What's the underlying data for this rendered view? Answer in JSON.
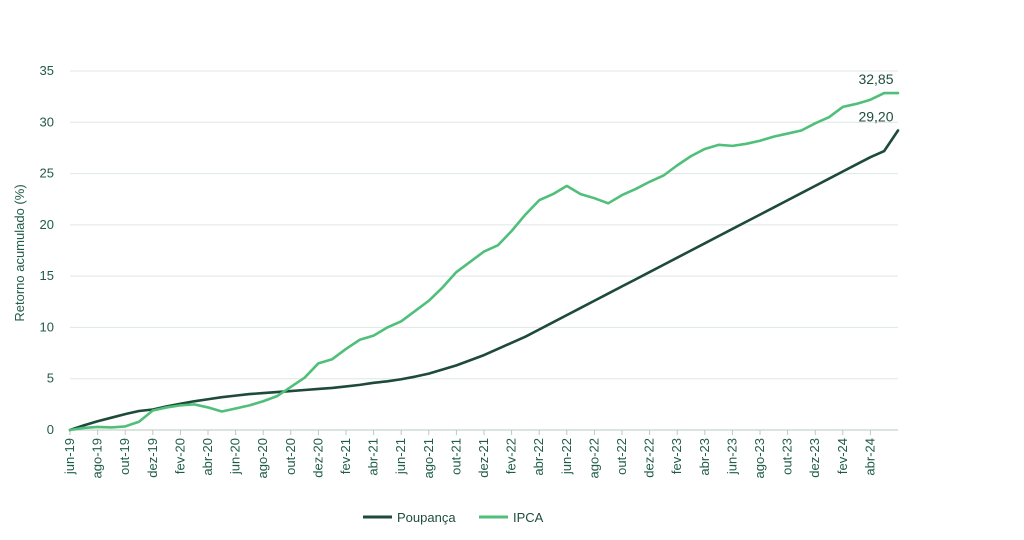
{
  "chart_data": {
    "type": "line",
    "ylabel": "Retorno acumulado (%)",
    "xlabel": "",
    "ylim": [
      0,
      35
    ],
    "yticks": [
      0,
      5,
      10,
      15,
      20,
      25,
      30,
      35
    ],
    "grid": "horizontal",
    "legend_position": "bottom-center",
    "x": [
      "jun-19",
      "jul-19",
      "ago-19",
      "set-19",
      "out-19",
      "nov-19",
      "dez-19",
      "jan-20",
      "fev-20",
      "mar-20",
      "abr-20",
      "mai-20",
      "jun-20",
      "jul-20",
      "ago-20",
      "set-20",
      "out-20",
      "nov-20",
      "dez-20",
      "jan-21",
      "fev-21",
      "mar-21",
      "abr-21",
      "mai-21",
      "jun-21",
      "jul-21",
      "ago-21",
      "set-21",
      "out-21",
      "nov-21",
      "dez-21",
      "jan-22",
      "fev-22",
      "mar-22",
      "abr-22",
      "mai-22",
      "jun-22",
      "jul-22",
      "ago-22",
      "set-22",
      "out-22",
      "nov-22",
      "dez-22",
      "jan-23",
      "fev-23",
      "mar-23",
      "abr-23",
      "mai-23",
      "jun-23",
      "jul-23",
      "ago-23",
      "set-23",
      "out-23",
      "nov-23",
      "dez-23",
      "jan-24",
      "fev-24",
      "mar-24",
      "abr-24",
      "mai-24",
      "jun-24"
    ],
    "xtick_labels": [
      "jun-19",
      "ago-19",
      "out-19",
      "dez-19",
      "fev-20",
      "abr-20",
      "jun-20",
      "ago-20",
      "out-20",
      "dez-20",
      "fev-21",
      "abr-21",
      "jun-21",
      "ago-21",
      "out-21",
      "dez-21",
      "fev-22",
      "abr-22",
      "jun-22",
      "ago-22",
      "out-22",
      "dez-22",
      "fev-23",
      "abr-23",
      "jun-23",
      "ago-23",
      "out-23",
      "dez-23",
      "fev-24",
      "abr-24"
    ],
    "series": [
      {
        "name": "Poupança",
        "color": "#1d4a39",
        "values": [
          0,
          0.45,
          0.85,
          1.2,
          1.55,
          1.85,
          2.0,
          2.3,
          2.55,
          2.8,
          3.0,
          3.2,
          3.35,
          3.5,
          3.6,
          3.7,
          3.8,
          3.9,
          4.0,
          4.1,
          4.25,
          4.4,
          4.6,
          4.75,
          4.95,
          5.2,
          5.5,
          5.9,
          6.3,
          6.8,
          7.3,
          7.9,
          8.5,
          9.1,
          9.8,
          10.5,
          11.2,
          11.9,
          12.6,
          13.3,
          14.0,
          14.7,
          15.4,
          16.1,
          16.8,
          17.5,
          18.2,
          18.9,
          19.6,
          20.3,
          21.0,
          21.7,
          22.4,
          23.1,
          23.8,
          24.5,
          25.2,
          25.9,
          26.6,
          27.2,
          29.2
        ],
        "end_label": "29,20"
      },
      {
        "name": "IPCA",
        "color": "#4fbf7a",
        "values": [
          0,
          0.2,
          0.3,
          0.25,
          0.35,
          0.8,
          1.9,
          2.2,
          2.4,
          2.5,
          2.2,
          1.8,
          2.1,
          2.4,
          2.8,
          3.3,
          4.2,
          5.1,
          6.5,
          6.9,
          7.9,
          8.8,
          9.2,
          10.0,
          10.6,
          11.6,
          12.6,
          13.9,
          15.4,
          16.4,
          17.4,
          18.0,
          19.4,
          21.0,
          22.4,
          23.0,
          23.8,
          23.0,
          22.6,
          22.1,
          22.9,
          23.5,
          24.2,
          24.8,
          25.8,
          26.7,
          27.4,
          27.8,
          27.7,
          27.9,
          28.2,
          28.6,
          28.9,
          29.2,
          29.9,
          30.5,
          31.5,
          31.8,
          32.2,
          32.85,
          32.85
        ],
        "end_label": "32,85"
      }
    ]
  }
}
